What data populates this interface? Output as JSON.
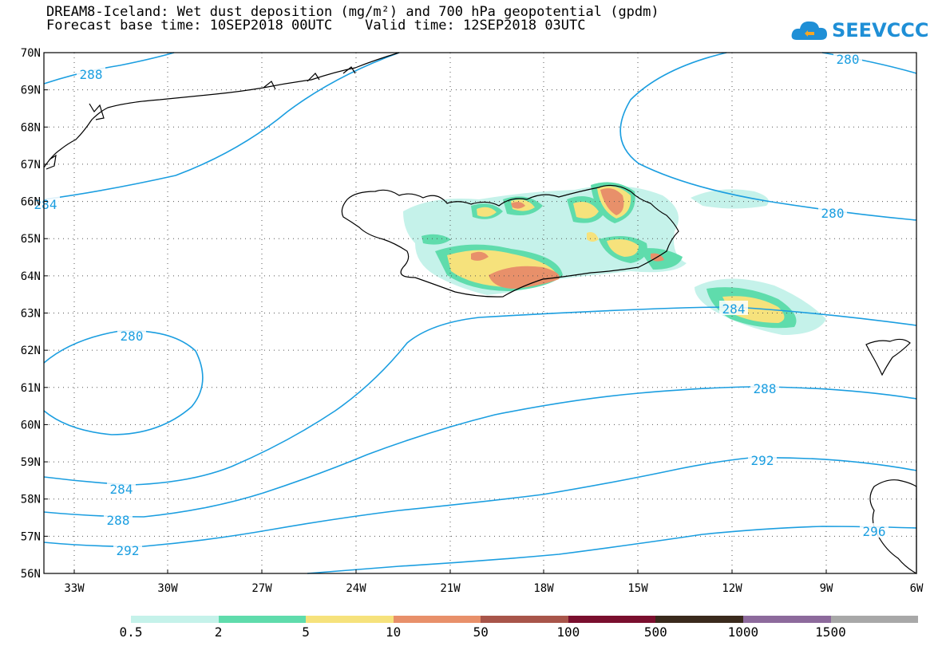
{
  "title_line1": "DREAM8-Iceland: Wet dust deposition (mg/m²) and 700 hPa geopotential (gpdm)",
  "title_line2": "Forecast base time: 10SEP2018 00UTC    Valid time: 12SEP2018 03UTC",
  "logo_text": "SEEVCCC",
  "lat_labels": [
    "70N",
    "69N",
    "68N",
    "67N",
    "66N",
    "65N",
    "64N",
    "63N",
    "62N",
    "61N",
    "60N",
    "59N",
    "58N",
    "57N",
    "56N"
  ],
  "lon_labels": [
    "33W",
    "30W",
    "27W",
    "24W",
    "21W",
    "18W",
    "15W",
    "12W",
    "9W",
    "6W"
  ],
  "contour_labels": [
    "288",
    "280",
    "284",
    "280",
    "280",
    "284",
    "284",
    "288",
    "288",
    "292",
    "292",
    "296"
  ],
  "legend": {
    "labels": [
      "0.5",
      "2",
      "5",
      "10",
      "50",
      "100",
      "500",
      "1000",
      "1500"
    ],
    "colors": [
      "#c5f2ea",
      "#5fdcac",
      "#f6e27c",
      "#e8906a",
      "#a8554a",
      "#7a0f2e",
      "#3a2a1c",
      "#8d6a9c",
      "#a8a8a8"
    ]
  },
  "colors": {
    "contour": "#1b9ee0",
    "coast": "#000000"
  }
}
